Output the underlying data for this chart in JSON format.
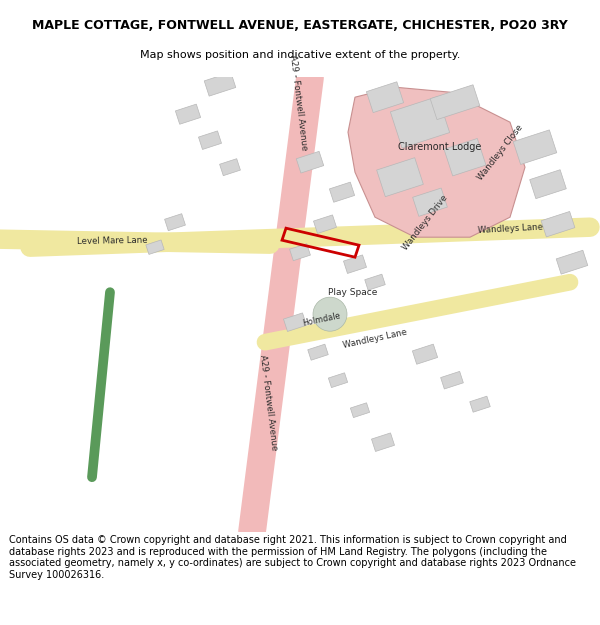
{
  "title": "MAPLE COTTAGE, FONTWELL AVENUE, EASTERGATE, CHICHESTER, PO20 3RY",
  "subtitle": "Map shows position and indicative extent of the property.",
  "footer": "Contains OS data © Crown copyright and database right 2021. This information is subject to Crown copyright and database rights 2023 and is reproduced with the permission of HM Land Registry. The polygons (including the associated geometry, namely x, y co-ordinates) are subject to Crown copyright and database rights 2023 Ordnance Survey 100026316.",
  "bg_color": "#ffffff",
  "road_a29_color": "#f2baba",
  "road_yellow_color": "#f0e8a0",
  "road_green_color": "#5a9a5a",
  "building_fill": "#d4d4d4",
  "building_edge": "#b8b8b8",
  "claremont_fill": "#f0c0c0",
  "claremont_edge": "#c89090",
  "plot_color": "#cc0000",
  "title_fontsize": 9,
  "subtitle_fontsize": 8,
  "footer_fontsize": 7
}
